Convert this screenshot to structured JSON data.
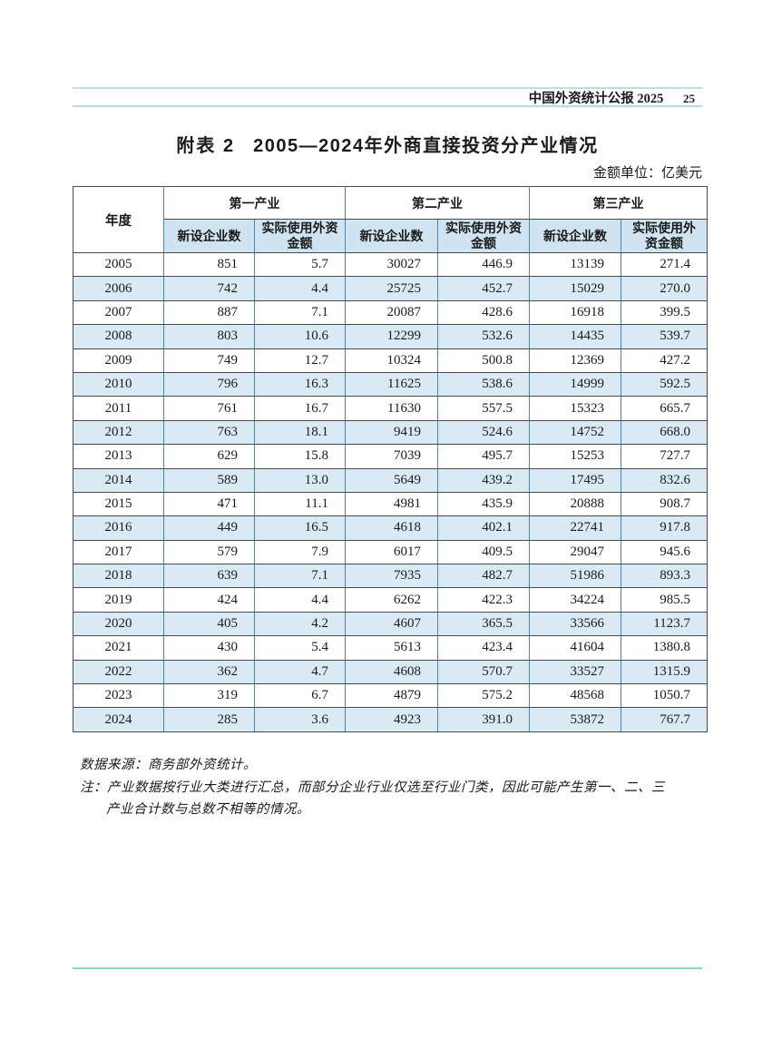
{
  "running_header": {
    "publication": "中国外资统计公报 2025",
    "page_number": "25"
  },
  "caption": {
    "label": "附表 2",
    "title": "2005—2024年外商直接投资分产业情况"
  },
  "unit_note": "金额单位：亿美元",
  "table": {
    "year_header": "年度",
    "groups": [
      "第一产业",
      "第二产业",
      "第三产业"
    ],
    "sub_headers": [
      "新设企业数",
      "实际使用外资金额"
    ],
    "rows": [
      [
        "2005",
        "851",
        "5.7",
        "30027",
        "446.9",
        "13139",
        "271.4"
      ],
      [
        "2006",
        "742",
        "4.4",
        "25725",
        "452.7",
        "15029",
        "270.0"
      ],
      [
        "2007",
        "887",
        "7.1",
        "20087",
        "428.6",
        "16918",
        "399.5"
      ],
      [
        "2008",
        "803",
        "10.6",
        "12299",
        "532.6",
        "14435",
        "539.7"
      ],
      [
        "2009",
        "749",
        "12.7",
        "10324",
        "500.8",
        "12369",
        "427.2"
      ],
      [
        "2010",
        "796",
        "16.3",
        "11625",
        "538.6",
        "14999",
        "592.5"
      ],
      [
        "2011",
        "761",
        "16.7",
        "11630",
        "557.5",
        "15323",
        "665.7"
      ],
      [
        "2012",
        "763",
        "18.1",
        "9419",
        "524.6",
        "14752",
        "668.0"
      ],
      [
        "2013",
        "629",
        "15.8",
        "7039",
        "495.7",
        "15253",
        "727.7"
      ],
      [
        "2014",
        "589",
        "13.0",
        "5649",
        "439.2",
        "17495",
        "832.6"
      ],
      [
        "2015",
        "471",
        "11.1",
        "4981",
        "435.9",
        "20888",
        "908.7"
      ],
      [
        "2016",
        "449",
        "16.5",
        "4618",
        "402.1",
        "22741",
        "917.8"
      ],
      [
        "2017",
        "579",
        "7.9",
        "6017",
        "409.5",
        "29047",
        "945.6"
      ],
      [
        "2018",
        "639",
        "7.1",
        "7935",
        "482.7",
        "51986",
        "893.3"
      ],
      [
        "2019",
        "424",
        "4.4",
        "6262",
        "422.3",
        "34224",
        "985.5"
      ],
      [
        "2020",
        "405",
        "4.2",
        "4607",
        "365.5",
        "33566",
        "1123.7"
      ],
      [
        "2021",
        "430",
        "5.4",
        "5613",
        "423.4",
        "41604",
        "1380.8"
      ],
      [
        "2022",
        "362",
        "4.7",
        "4608",
        "570.7",
        "33527",
        "1315.9"
      ],
      [
        "2023",
        "319",
        "6.7",
        "4879",
        "575.2",
        "48568",
        "1050.7"
      ],
      [
        "2024",
        "285",
        "3.6",
        "4923",
        "391.0",
        "53872",
        "767.7"
      ]
    ]
  },
  "notes": {
    "source": "数据来源：商务部外资统计。",
    "note_line1": "注：产业数据按行业大类进行汇总，而部分企业行业仅选至行业门类，因此可能产生第一、二、三",
    "note_line2": "产业合计数与总数不相等的情况。"
  },
  "colors": {
    "header_fill": "#cfe4f0",
    "row_fill": "#d9eaf5",
    "vertical_border": "#4d86b0",
    "horizontal_border": "#4a4a4a",
    "header_rule": "#b5dde8",
    "bottom_rule": "#97d1cd"
  }
}
